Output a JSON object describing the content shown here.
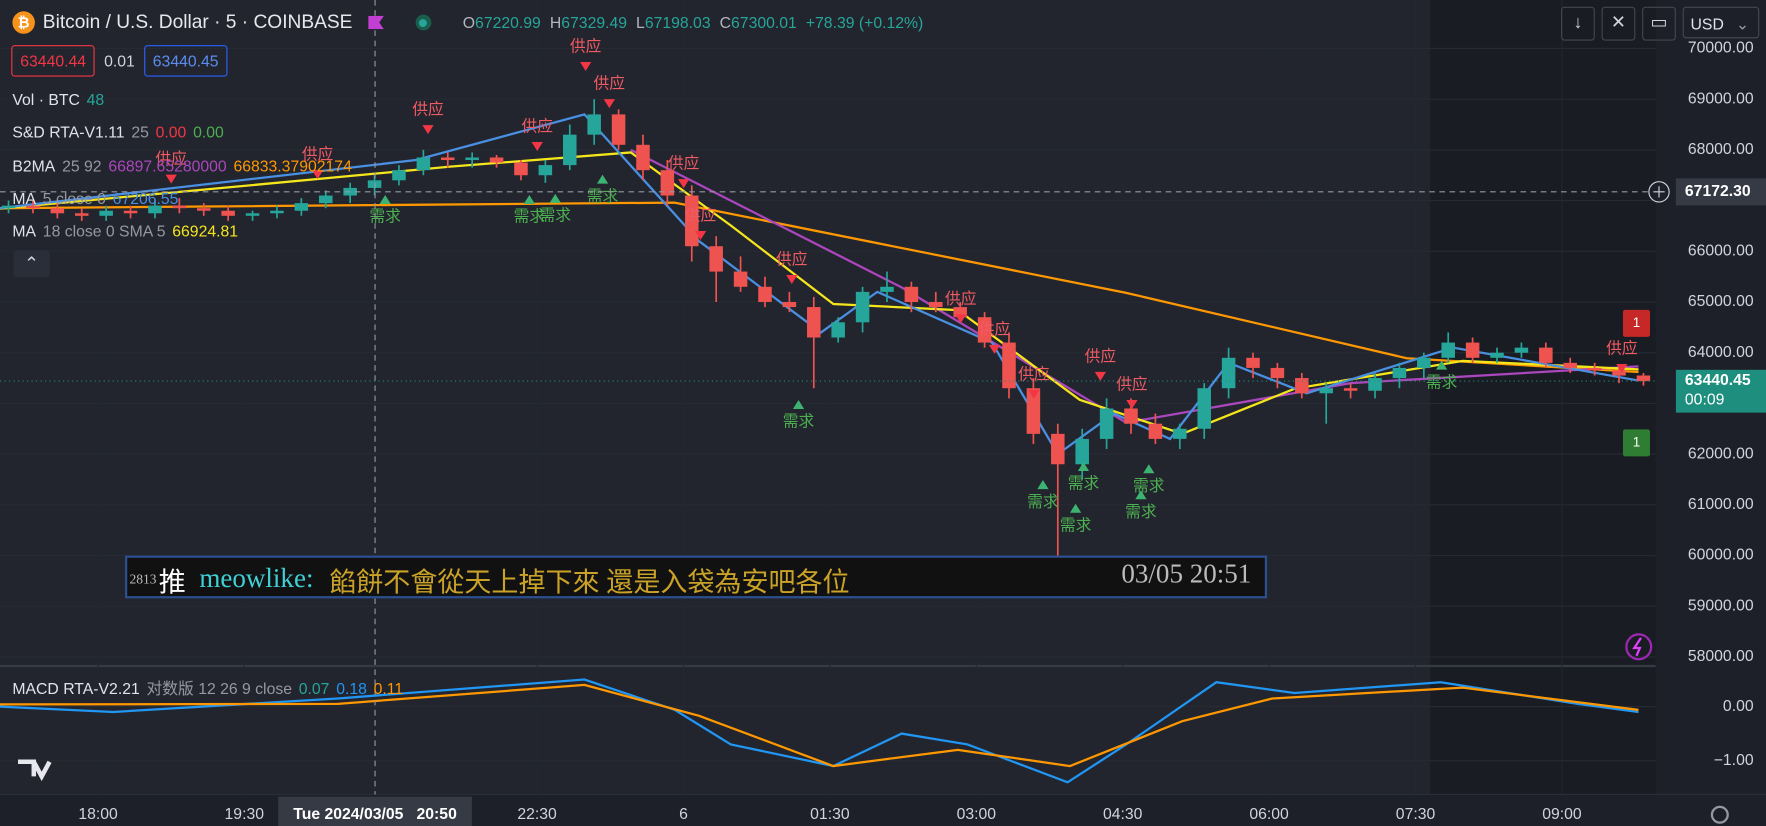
{
  "header": {
    "title": "Bitcoin / U.S. Dollar · 5 · COINBASE",
    "ohlc": [
      {
        "label": "O",
        "value": "67220.99"
      },
      {
        "label": "H",
        "value": "67329.49"
      },
      {
        "label": "L",
        "value": "67198.03"
      },
      {
        "label": "C",
        "value": "67300.01"
      }
    ],
    "change": "+78.39 (+0.12%)",
    "currency": "USD"
  },
  "order": {
    "sell": "63440.44",
    "spread": "0.01",
    "buy": "63440.45"
  },
  "legend": [
    {
      "name": "Vol · BTC",
      "values": [
        "48"
      ],
      "colors": [
        "#26a69a"
      ]
    },
    {
      "name": "S&D RTA-V1.11",
      "params": "25",
      "values": [
        "0.00",
        "0.00"
      ],
      "colors": [
        "#f23645",
        "#4caf50"
      ]
    },
    {
      "name": "B2MA",
      "params": "25 92",
      "values": [
        "66897.65280000",
        "66833.37902174"
      ],
      "colors": [
        "#ab47bc",
        "#ff9800"
      ]
    },
    {
      "name": "MA",
      "params": "5 close 0",
      "values": [
        "67206.55"
      ],
      "colors": [
        "#4a90e2"
      ]
    },
    {
      "name": "MA",
      "params": "18 close 0 SMA 5",
      "values": [
        "66924.81"
      ],
      "colors": [
        "#f5e61c"
      ]
    }
  ],
  "macd_legend": {
    "name": "MACD RTA-V2.21",
    "params": "对数版 12 26 9 close",
    "values": [
      "0.07",
      "0.18",
      "0.11"
    ],
    "colors": [
      "#26a69a",
      "#2196f3",
      "#ff9800"
    ]
  },
  "signals": {
    "supply": [
      "供应",
      "供应",
      "供应",
      "供应",
      "供应",
      "供应",
      "供应",
      "供应",
      "供应",
      "供应",
      "供应",
      "供应",
      "供应",
      "供应",
      "供应"
    ],
    "demand": [
      "需求",
      "需求",
      "需求",
      "需求",
      "需求",
      "需求",
      "需求",
      "需求",
      "需求",
      "需求",
      "需求"
    ]
  },
  "badges": [
    "1",
    "1"
  ],
  "chat": {
    "number": "2813",
    "prefix": "推",
    "user": "meowlike:",
    "message": "餡餅不會從天上掉下來 還是入袋為安吧各位",
    "time": "03/05 20:51"
  },
  "chart_data": {
    "type": "candlestick",
    "up_color": "#26a69a",
    "down_color": "#ef5350",
    "open": [
      66850,
      66900,
      66850,
      66750,
      66700,
      66800,
      66750,
      66900,
      66850,
      66800,
      66700,
      66750,
      66800,
      66950,
      67100,
      67250,
      67400,
      67600,
      67850,
      67800,
      67850,
      67750,
      67500,
      67700,
      68300,
      68700,
      68100,
      67600,
      67100,
      66100,
      65600,
      65300,
      65000,
      64900,
      64300,
      64600,
      65200,
      65300,
      65000,
      64900,
      64700,
      64200,
      63300,
      62400,
      61800,
      62300,
      62900,
      62600,
      62300,
      62500,
      63300,
      63900,
      63700,
      63500,
      63200,
      63300,
      63250,
      63500,
      63700,
      63900,
      64200,
      63900,
      64000,
      64100,
      63800,
      63700,
      63650,
      63550
    ],
    "high": [
      67000,
      67000,
      66950,
      66850,
      66900,
      66900,
      67000,
      67050,
      66950,
      66900,
      66800,
      66900,
      67050,
      67200,
      67350,
      67500,
      67700,
      68000,
      67950,
      67950,
      67900,
      67800,
      67800,
      68500,
      69000,
      68800,
      68300,
      67800,
      67300,
      66300,
      65900,
      65500,
      65200,
      65100,
      64700,
      65300,
      65600,
      65400,
      65200,
      65000,
      64800,
      64400,
      63500,
      62600,
      62500,
      63100,
      63100,
      62800,
      62600,
      63400,
      64100,
      64000,
      63800,
      63600,
      63400,
      63400,
      63600,
      63800,
      64000,
      64400,
      64300,
      64100,
      64200,
      64200,
      63900,
      63800,
      63700,
      63600
    ],
    "low": [
      66750,
      66750,
      66650,
      66600,
      66600,
      66650,
      66650,
      66750,
      66700,
      66600,
      66600,
      66650,
      66700,
      66850,
      66950,
      67100,
      67300,
      67500,
      67650,
      67650,
      67650,
      67400,
      67350,
      67600,
      68100,
      68000,
      67400,
      66900,
      65800,
      65000,
      65200,
      64900,
      64800,
      63300,
      64200,
      64400,
      65000,
      64800,
      64800,
      64600,
      64100,
      63100,
      62200,
      60000,
      61500,
      62100,
      62400,
      62200,
      62100,
      62300,
      63100,
      63500,
      63300,
      63100,
      62600,
      63100,
      63100,
      63300,
      63500,
      63800,
      63800,
      63800,
      63900,
      63700,
      63600,
      63550,
      63400,
      63350
    ],
    "close": [
      66900,
      66850,
      66750,
      66700,
      66800,
      66750,
      66900,
      66850,
      66800,
      66700,
      66750,
      66800,
      66950,
      67100,
      67250,
      67400,
      67600,
      67850,
      67800,
      67850,
      67750,
      67500,
      67700,
      68300,
      68700,
      68100,
      67600,
      67100,
      66100,
      65600,
      65300,
      65000,
      64900,
      64300,
      64600,
      65200,
      65300,
      65000,
      64900,
      64700,
      64200,
      63300,
      62400,
      61800,
      62300,
      62900,
      62600,
      62300,
      62500,
      63300,
      63900,
      63700,
      63500,
      63200,
      63300,
      63250,
      63500,
      63700,
      63900,
      64200,
      63900,
      64000,
      64100,
      63800,
      63700,
      63650,
      63550,
      63440
    ],
    "lines": [
      {
        "color": "#ff9800",
        "x": [
          -0.4,
          27.3,
          45.8,
          57.3,
          66.8
        ],
        "values": [
          66850,
          66960,
          65180,
          63890,
          63620
        ]
      },
      {
        "color": "#ab47bc",
        "x": [
          25.5,
          36.6,
          45.8,
          55.0,
          66.8
        ],
        "values": [
          68000,
          65290,
          62620,
          63400,
          63730
        ]
      },
      {
        "color": "#f5e61c",
        "x": [
          -0.4,
          18.1,
          25.5,
          29.6,
          33.8,
          38.9,
          43.9,
          48.1,
          52.7,
          59.6,
          66.8
        ],
        "values": [
          66840,
          67670,
          67950,
          66510,
          64960,
          64840,
          63070,
          62400,
          63290,
          63840,
          63670
        ]
      },
      {
        "color": "#4a90e2",
        "x": [
          -0.4,
          16.7,
          23.6,
          28.3,
          31.9,
          33.3,
          35.6,
          40.3,
          43.0,
          45.3,
          47.6,
          50.0,
          53.2,
          59.2,
          66.8
        ],
        "values": [
          66850,
          67800,
          68700,
          66200,
          64900,
          64400,
          65200,
          64200,
          62000,
          62800,
          62300,
          63800,
          63200,
          64100,
          63450
        ]
      }
    ],
    "macd_lines": [
      {
        "color": "#2196f3",
        "axis": "y2",
        "x": [
          -0.4,
          4.3,
          13.5,
          23.6,
          27.3,
          29.6,
          33.8,
          36.6,
          39.3,
          43.4,
          45.8,
          49.5,
          52.7,
          58.7,
          64.3,
          66.8
        ],
        "values": [
          0,
          -0.1,
          0.15,
          0.5,
          -0.06,
          -0.7,
          -1.1,
          -0.5,
          -0.7,
          -1.4,
          -0.7,
          0.45,
          0.25,
          0.45,
          0.05,
          -0.1
        ]
      },
      {
        "color": "#ff9800",
        "axis": "y2",
        "x": [
          -0.4,
          13.5,
          23.6,
          28.3,
          33.8,
          38.9,
          43.5,
          48.1,
          51.8,
          59.6,
          66.8
        ],
        "values": [
          0.04,
          0.05,
          0.4,
          -0.17,
          -1.1,
          -0.8,
          -1.1,
          -0.27,
          0.15,
          0.35,
          -0.06
        ]
      }
    ],
    "xlim": [
      -0.35,
      67.5
    ],
    "xticks": [
      {
        "value": 3.67,
        "label": "18:00"
      },
      {
        "value": 9.66,
        "label": "19:30"
      },
      {
        "value": 21.66,
        "label": "22:30"
      },
      {
        "value": 27.66,
        "label": "6"
      },
      {
        "value": 33.66,
        "label": "01:30"
      },
      {
        "value": 39.66,
        "label": "03:00"
      },
      {
        "value": 45.66,
        "label": "04:30"
      },
      {
        "value": 51.66,
        "label": "06:00"
      },
      {
        "value": 57.66,
        "label": "07:30"
      },
      {
        "value": 63.66,
        "label": "09:00"
      }
    ],
    "ylim": [
      57844,
      70956
    ],
    "yticks": [
      {
        "value": 58000,
        "label": "58000.00"
      },
      {
        "value": 59000,
        "label": "59000.00"
      },
      {
        "value": 60000,
        "label": "60000.00"
      },
      {
        "value": 61000,
        "label": "61000.00"
      },
      {
        "value": 62000,
        "label": "62000.00"
      },
      {
        "value": 63000,
        "label": "63000.00"
      },
      {
        "value": 64000,
        "label": "64000.00"
      },
      {
        "value": 65000,
        "label": "65000.00"
      },
      {
        "value": 66000,
        "label": "66000.00"
      },
      {
        "value": 67000,
        "label": "67000.00"
      },
      {
        "value": 68000,
        "label": "68000.00"
      },
      {
        "value": 69000,
        "label": "69000.00"
      },
      {
        "value": 70000,
        "label": "70000.00"
      }
    ],
    "y2lim": [
      -1.625,
      0.73
    ],
    "y2ticks": [
      {
        "value": 0,
        "label": "0.00"
      },
      {
        "value": -1,
        "label": "−1.00"
      }
    ],
    "grid": true,
    "crosshair": {
      "value": 67172.3,
      "label": "67172.30",
      "x": 15.02,
      "x_label": "Tue 2024/03/05   20:50"
    },
    "last_price": {
      "value": 63440.45,
      "label": "63440.45",
      "countdown": "00:09",
      "color": "#1e8f7e"
    }
  }
}
